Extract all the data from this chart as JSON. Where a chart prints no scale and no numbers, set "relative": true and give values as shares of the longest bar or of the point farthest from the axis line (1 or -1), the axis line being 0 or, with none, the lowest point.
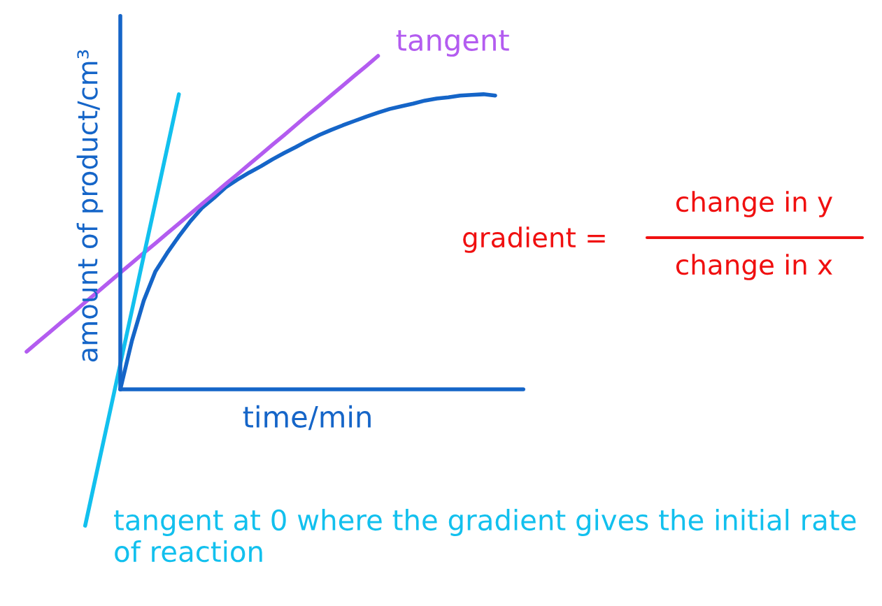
{
  "chart_data": {
    "type": "line",
    "relative": true,
    "xlabel": "time/min",
    "ylabel": "amount of product/cm³",
    "categories": [
      null,
      null,
      null,
      null,
      null,
      null,
      null,
      null,
      null,
      null,
      null,
      null,
      null,
      null,
      null,
      null,
      null,
      null,
      null,
      null,
      null,
      null,
      null,
      null,
      null,
      null,
      null,
      null,
      null,
      null,
      null,
      null,
      null,
      null,
      null,
      null,
      null,
      null,
      null,
      null,
      null
    ],
    "series": [
      {
        "color": "#1565c8",
        "values": [
          null,
          null,
          null,
          null,
          null,
          null,
          null,
          null,
          0,
          0.147,
          0.266,
          0.354,
          0.409,
          0.459,
          0.505,
          0.545,
          0.574,
          0.606,
          0.629,
          0.65,
          0.669,
          0.69,
          0.709,
          0.727,
          0.746,
          0.763,
          0.778,
          0.792,
          0.805,
          0.818,
          0.83,
          0.841,
          0.849,
          0.857,
          0.866,
          0.872,
          0.876,
          0.881,
          0.883,
          0.885,
          0.881
        ]
      },
      {
        "name": "tangent",
        "color": "#b35cf0",
        "values": [
          0.113,
          0.143,
          0.172,
          0.202,
          0.231,
          0.261,
          0.29,
          0.32,
          0.35,
          0.379,
          0.409,
          0.438,
          0.468,
          0.497,
          0.527,
          0.557,
          0.586,
          0.616,
          0.645,
          0.675,
          0.704,
          0.734,
          0.763,
          0.793,
          0.823,
          0.852,
          0.882,
          0.911,
          0.941,
          0.97,
          1.0,
          null,
          null,
          null,
          null,
          null,
          null,
          null,
          null,
          null,
          null
        ]
      },
      {
        "color": "#12c0ee",
        "values": [
          null,
          null,
          null,
          null,
          null,
          -0.409,
          -0.247,
          -0.086,
          0.076,
          0.238,
          0.4,
          0.561,
          0.723,
          0.885,
          null,
          null,
          null,
          null,
          null,
          null,
          null,
          null,
          null,
          null,
          null,
          null,
          null,
          null,
          null,
          null,
          null,
          null,
          null,
          null,
          null,
          null,
          null,
          null,
          null,
          null,
          null
        ]
      }
    ],
    "ref_lines": [
      {
        "axis": "y",
        "value": 0,
        "color": "#1565c8"
      }
    ],
    "annotations": [
      "tangent at 0 where the gradient gives the initial rate of reaction",
      "gradient =",
      "change in y",
      "change in x"
    ]
  }
}
